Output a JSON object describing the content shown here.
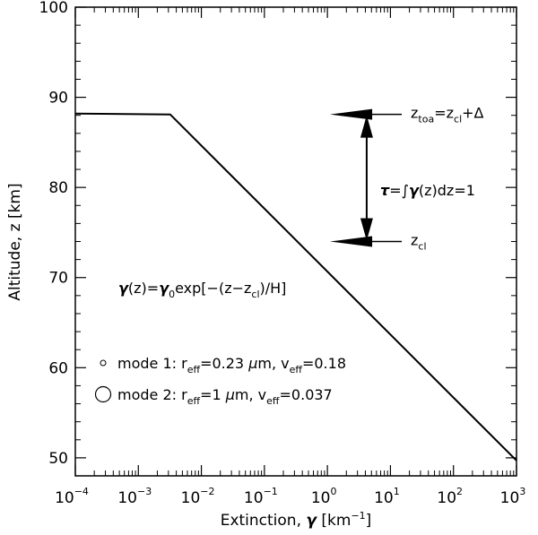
{
  "chart_data": {
    "type": "line",
    "title": "",
    "xlabel": {
      "main": "Extinction, ",
      "symbol": "γ",
      "unit_pre": " [km",
      "unit_sup": "−1",
      "unit_post": "]"
    },
    "ylabel": "Altitude, z [km]",
    "xscale": "log",
    "xlim": [
      0.0001,
      1000
    ],
    "ylim": [
      48,
      100
    ],
    "grid": false,
    "x_ticks": [
      {
        "value": 0.0001,
        "base": "10",
        "exp": "−4"
      },
      {
        "value": 0.001,
        "base": "10",
        "exp": "−3"
      },
      {
        "value": 0.01,
        "base": "10",
        "exp": "−2"
      },
      {
        "value": 0.1,
        "base": "10",
        "exp": "−1"
      },
      {
        "value": 1,
        "base": "10",
        "exp": "0"
      },
      {
        "value": 10,
        "base": "10",
        "exp": "1"
      },
      {
        "value": 100,
        "base": "10",
        "exp": "2"
      },
      {
        "value": 1000,
        "base": "10",
        "exp": "3"
      }
    ],
    "y_ticks": [
      {
        "value": 50,
        "label": "50"
      },
      {
        "value": 60,
        "label": "60"
      },
      {
        "value": 70,
        "label": "70"
      },
      {
        "value": 80,
        "label": "80"
      },
      {
        "value": 90,
        "label": "90"
      },
      {
        "value": 100,
        "label": "100"
      }
    ],
    "series": [
      {
        "x": [
          0.0001,
          0.0032,
          1000
        ],
        "y": [
          88.2,
          88.1,
          49.7
        ]
      }
    ],
    "annotations": {
      "z_toa": {
        "value": 88.1,
        "x": 4.2,
        "label_z": "z",
        "label_toa": "toa",
        "eq": "=z",
        "label_cl": "cl",
        "plus": "+Δ"
      },
      "z_cl": {
        "value": 74.0,
        "x": 4.2,
        "label_z": "z",
        "label_cl": "cl"
      },
      "tau": {
        "tau": "τ",
        "rest": "=∫",
        "gamma": "γ",
        "tail": "(z)dz=1"
      },
      "profile": {
        "gamma": "γ",
        "p1": "(z)=",
        "gamma0": "γ",
        "sub0": "0",
        "p2": "exp[−(z−z",
        "subcl": "cl",
        "p3": ")/H]"
      },
      "mode1": {
        "text1": "mode 1: r",
        "sub1": "eff",
        "text2": "=0.23 ",
        "mu": "μ",
        "text3": "m, v",
        "sub2": "eff",
        "text4": "=0.18"
      },
      "mode2": {
        "text1": "mode 2: r",
        "sub1": "eff",
        "text2": "=1 ",
        "mu": "μ",
        "text3": "m, v",
        "sub2": "eff",
        "text4": "=0.037"
      }
    }
  }
}
